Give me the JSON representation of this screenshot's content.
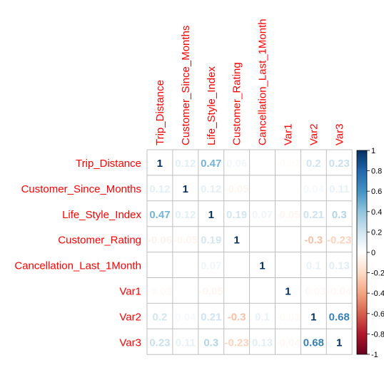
{
  "chart_data": {
    "type": "heatmap",
    "title": "",
    "variables": [
      "Trip_Distance",
      "Customer_Since_Months",
      "Life_Style_Index",
      "Customer_Rating",
      "Cancellation_Last_1Month",
      "Var1",
      "Var2",
      "Var3"
    ],
    "matrix": [
      [
        1,
        0.12,
        0.47,
        0.06,
        0.0,
        -0.02,
        0.2,
        0.23
      ],
      [
        0.12,
        1,
        0.12,
        -0.05,
        0.0,
        0.0,
        0.04,
        0.11
      ],
      [
        0.47,
        0.12,
        1,
        0.19,
        0.07,
        -0.05,
        0.21,
        0.3
      ],
      [
        -0.06,
        -0.05,
        0.19,
        1,
        0.0,
        0.0,
        -0.3,
        -0.23
      ],
      [
        0.0,
        0.0,
        0.07,
        0.0,
        1,
        0.0,
        0.1,
        0.13
      ],
      [
        -0.02,
        0.0,
        -0.05,
        0.0,
        0.0,
        1,
        -0.03,
        -0.04
      ],
      [
        0.2,
        0.04,
        0.21,
        -0.3,
        0.1,
        -0.03,
        1,
        0.68
      ],
      [
        0.23,
        0.11,
        0.3,
        -0.23,
        0.13,
        -0.04,
        0.68,
        1
      ]
    ],
    "value_labels": [
      [
        "1",
        "0.12",
        "0.47",
        "0.06",
        "",
        "-0.02",
        "0.2",
        "0.23"
      ],
      [
        "0.12",
        "1",
        "0.12",
        "-0.05",
        "",
        "",
        "0.04",
        "0.11"
      ],
      [
        "0.47",
        "0.12",
        "1",
        "0.19",
        "0.07",
        "-0.05",
        "0.21",
        "0.3"
      ],
      [
        "-0.06",
        "-0.05",
        "0.19",
        "1",
        "",
        "",
        "-0.3",
        "-0.23"
      ],
      [
        "",
        "",
        "0.07",
        "",
        "1",
        "",
        "0.1",
        "0.13"
      ],
      [
        "-0.02",
        "",
        "-0.05",
        "",
        "",
        "1",
        "-0.03",
        "-0.04"
      ],
      [
        "0.2",
        "0.04",
        "0.21",
        "-0.3",
        "0.1",
        "-0.03",
        "1",
        "0.68"
      ],
      [
        "0.23",
        "0.11",
        "0.3",
        "-0.23",
        "0.13",
        "-0.04",
        "0.68",
        "1"
      ]
    ],
    "colorbar": {
      "range": [
        -1,
        1
      ],
      "ticks": [
        -1,
        -0.8,
        -0.6,
        -0.4,
        -0.2,
        0,
        0.2,
        0.4,
        0.6,
        0.8,
        1
      ],
      "tick_labels": [
        "-1",
        "-0.8",
        "-0.6",
        "-0.4",
        "-0.2",
        "0",
        "0.2",
        "0.4",
        "0.6",
        "0.8",
        "1"
      ],
      "stops": [
        "#67001F",
        "#B2182B",
        "#D6604D",
        "#F4A582",
        "#FDDBC7",
        "#FFFFFF",
        "#D1E5F0",
        "#92C5DE",
        "#4393C3",
        "#2166AC",
        "#053061"
      ]
    },
    "label_color": "#FF0000",
    "grid": true
  }
}
